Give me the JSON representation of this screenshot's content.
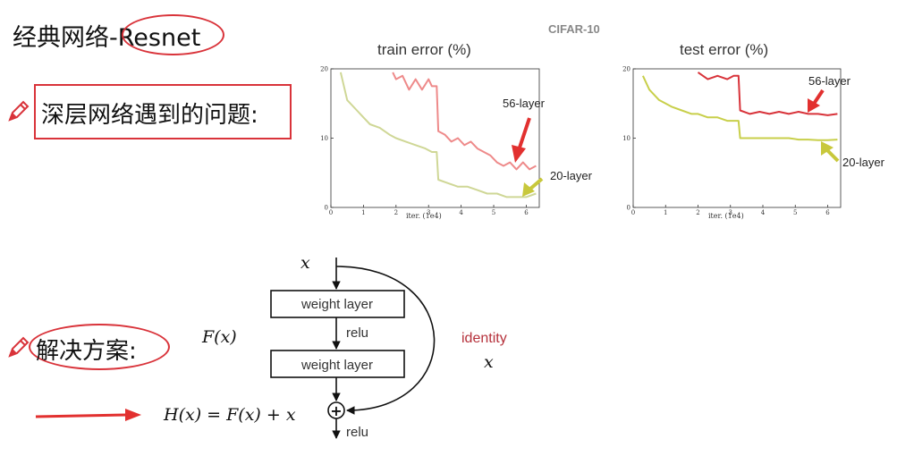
{
  "slide": {
    "title": "经典网络-Resnet",
    "problem": "深层网络遇到的问题:",
    "solution": "解决方案:"
  },
  "figure": {
    "dataset": "CIFAR-10",
    "x_axis_label": "iter. (1e4)"
  },
  "chart_data": [
    {
      "type": "line",
      "title": "train error (%)",
      "xlabel": "iter. (1e4)",
      "ylabel": "",
      "xlim": [
        0,
        6.4
      ],
      "ylim": [
        0,
        20
      ],
      "x_ticks": [
        "0",
        "1",
        "2",
        "3",
        "4",
        "5",
        "6"
      ],
      "y_ticks": [
        "0",
        "10",
        "20"
      ],
      "grid": false,
      "series": [
        {
          "name": "56-layer",
          "color": "#ee8a8a",
          "x": [
            1.9,
            2.0,
            2.2,
            2.4,
            2.6,
            2.8,
            3.0,
            3.1,
            3.25,
            3.3,
            3.5,
            3.7,
            3.9,
            4.1,
            4.3,
            4.5,
            4.7,
            4.9,
            5.1,
            5.3,
            5.5,
            5.7,
            5.9,
            6.1,
            6.3
          ],
          "y": [
            19.5,
            18.5,
            19.0,
            17.0,
            18.5,
            17.0,
            18.5,
            17.5,
            17.5,
            11.0,
            10.5,
            9.5,
            10.0,
            9.0,
            9.5,
            8.5,
            8.0,
            7.5,
            6.5,
            6.0,
            6.5,
            5.5,
            6.5,
            5.5,
            6.0
          ]
        },
        {
          "name": "20-layer",
          "color": "#cfd796",
          "x": [
            0.3,
            0.5,
            0.8,
            1.0,
            1.2,
            1.5,
            1.8,
            2.0,
            2.3,
            2.6,
            2.9,
            3.1,
            3.25,
            3.3,
            3.6,
            3.9,
            4.2,
            4.5,
            4.8,
            5.1,
            5.4,
            5.7,
            6.0,
            6.3
          ],
          "y": [
            19.5,
            15.5,
            14.0,
            13.0,
            12.0,
            11.5,
            10.5,
            10.0,
            9.5,
            9.0,
            8.5,
            8.0,
            8.0,
            4.0,
            3.5,
            3.0,
            3.0,
            2.5,
            2.0,
            2.0,
            1.5,
            1.5,
            1.5,
            2.0
          ]
        }
      ]
    },
    {
      "type": "line",
      "title": "test error (%)",
      "xlabel": "iter. (1e4)",
      "ylabel": "",
      "xlim": [
        0,
        6.4
      ],
      "ylim": [
        0,
        20
      ],
      "x_ticks": [
        "0",
        "1",
        "2",
        "3",
        "4",
        "5",
        "6"
      ],
      "y_ticks": [
        "0",
        "10",
        "20"
      ],
      "grid": false,
      "series": [
        {
          "name": "56-layer",
          "color": "#d8333a",
          "x": [
            2.0,
            2.3,
            2.6,
            2.9,
            3.1,
            3.25,
            3.3,
            3.6,
            3.9,
            4.2,
            4.5,
            4.8,
            5.1,
            5.4,
            5.7,
            6.0,
            6.3
          ],
          "y": [
            19.5,
            18.5,
            19.0,
            18.5,
            19.0,
            19.0,
            14.0,
            13.5,
            13.8,
            13.5,
            13.8,
            13.5,
            13.8,
            13.5,
            13.5,
            13.3,
            13.5
          ]
        },
        {
          "name": "20-layer",
          "color": "#c8cf4a",
          "x": [
            0.3,
            0.5,
            0.8,
            1.0,
            1.2,
            1.5,
            1.8,
            2.0,
            2.3,
            2.6,
            2.9,
            3.1,
            3.25,
            3.3,
            3.6,
            3.9,
            4.2,
            4.5,
            4.8,
            5.1,
            5.4,
            5.7,
            6.0,
            6.3
          ],
          "y": [
            19.0,
            17.0,
            15.5,
            15.0,
            14.5,
            14.0,
            13.5,
            13.5,
            13.0,
            13.0,
            12.5,
            12.5,
            12.5,
            10.0,
            10.0,
            10.0,
            10.0,
            10.0,
            10.0,
            9.8,
            9.8,
            9.7,
            9.7,
            9.8
          ]
        }
      ]
    }
  ],
  "residual_block": {
    "input_label": "x",
    "block_label": "F(x)",
    "layer1": "weight layer",
    "relu1": "relu",
    "layer2": "weight layer",
    "equation": "H(x) = F(x) + x",
    "relu2": "relu",
    "identity_label": "identity",
    "identity_var": "x",
    "plus": "+"
  },
  "colors": {
    "annotation_red": "#d9333a",
    "arrow_red": "#e2302f",
    "arrow_yellow": "#c8c83c"
  }
}
